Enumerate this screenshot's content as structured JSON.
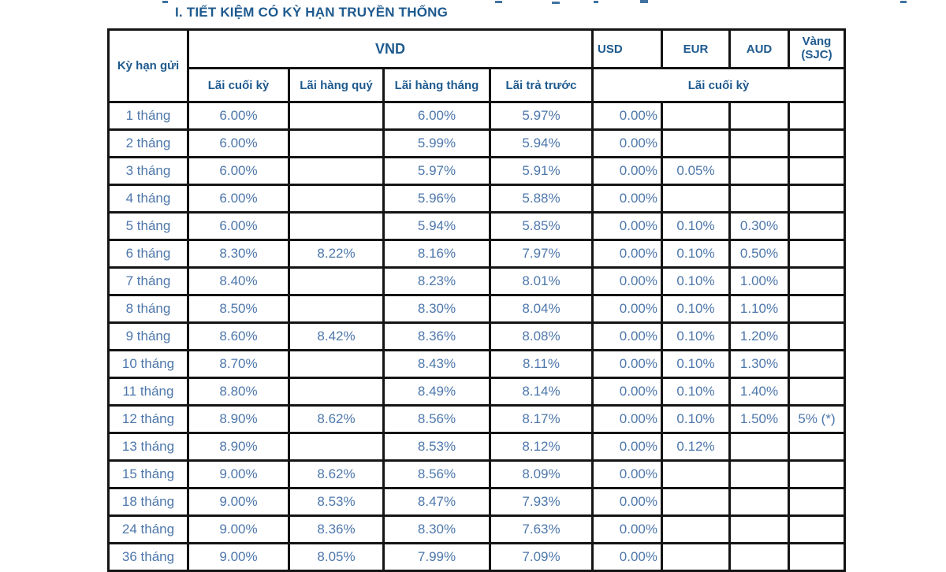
{
  "page": {
    "section_title": "I. TIẾT KIỆM CÓ KỲ HẠN TRUYỀN THỐNG"
  },
  "colors": {
    "header_text": "#1e5a8e",
    "data_text": "#4d77ab",
    "border": "#141414",
    "background": "#ffffff"
  },
  "table": {
    "header": {
      "term_col": "Kỳ hạn gửi",
      "vnd_group": "VND",
      "currencies": [
        "USD",
        "EUR",
        "AUD"
      ],
      "gold_line1": "Vàng",
      "gold_line2": "(SJC)",
      "vnd_subheaders": [
        "Lãi cuối kỳ",
        "Lãi hàng quý",
        "Lãi hàng tháng",
        "Lãi trả trước"
      ],
      "fx_subheader": "Lãi cuối kỳ"
    },
    "column_keys": [
      "term",
      "vnd_end",
      "vnd_quarterly",
      "vnd_monthly",
      "vnd_prepaid",
      "usd",
      "eur",
      "aud",
      "gold"
    ],
    "rows": [
      {
        "term": "1 tháng",
        "vnd_end": "6.00%",
        "vnd_quarterly": "",
        "vnd_monthly": "6.00%",
        "vnd_prepaid": "5.97%",
        "usd": "0.00%",
        "eur": "",
        "aud": "",
        "gold": ""
      },
      {
        "term": "2 tháng",
        "vnd_end": "6.00%",
        "vnd_quarterly": "",
        "vnd_monthly": "5.99%",
        "vnd_prepaid": "5.94%",
        "usd": "0.00%",
        "eur": "",
        "aud": "",
        "gold": ""
      },
      {
        "term": "3 tháng",
        "vnd_end": "6.00%",
        "vnd_quarterly": "",
        "vnd_monthly": "5.97%",
        "vnd_prepaid": "5.91%",
        "usd": "0.00%",
        "eur": "0.05%",
        "aud": "",
        "gold": ""
      },
      {
        "term": "4 tháng",
        "vnd_end": "6.00%",
        "vnd_quarterly": "",
        "vnd_monthly": "5.96%",
        "vnd_prepaid": "5.88%",
        "usd": "0.00%",
        "eur": "",
        "aud": "",
        "gold": ""
      },
      {
        "term": "5 tháng",
        "vnd_end": "6.00%",
        "vnd_quarterly": "",
        "vnd_monthly": "5.94%",
        "vnd_prepaid": "5.85%",
        "usd": "0.00%",
        "eur": "0.10%",
        "aud": "0.30%",
        "gold": ""
      },
      {
        "term": "6 tháng",
        "vnd_end": "8.30%",
        "vnd_quarterly": "8.22%",
        "vnd_monthly": "8.16%",
        "vnd_prepaid": "7.97%",
        "usd": "0.00%",
        "eur": "0.10%",
        "aud": "0.50%",
        "gold": ""
      },
      {
        "term": "7 tháng",
        "vnd_end": "8.40%",
        "vnd_quarterly": "",
        "vnd_monthly": "8.23%",
        "vnd_prepaid": "8.01%",
        "usd": "0.00%",
        "eur": "0.10%",
        "aud": "1.00%",
        "gold": ""
      },
      {
        "term": "8 tháng",
        "vnd_end": "8.50%",
        "vnd_quarterly": "",
        "vnd_monthly": "8.30%",
        "vnd_prepaid": "8.04%",
        "usd": "0.00%",
        "eur": "0.10%",
        "aud": "1.10%",
        "gold": ""
      },
      {
        "term": "9 tháng",
        "vnd_end": "8.60%",
        "vnd_quarterly": "8.42%",
        "vnd_monthly": "8.36%",
        "vnd_prepaid": "8.08%",
        "usd": "0.00%",
        "eur": "0.10%",
        "aud": "1.20%",
        "gold": ""
      },
      {
        "term": "10 tháng",
        "vnd_end": "8.70%",
        "vnd_quarterly": "",
        "vnd_monthly": "8.43%",
        "vnd_prepaid": "8.11%",
        "usd": "0.00%",
        "eur": "0.10%",
        "aud": "1.30%",
        "gold": ""
      },
      {
        "term": "11 tháng",
        "vnd_end": "8.80%",
        "vnd_quarterly": "",
        "vnd_monthly": "8.49%",
        "vnd_prepaid": "8.14%",
        "usd": "0.00%",
        "eur": "0.10%",
        "aud": "1.40%",
        "gold": ""
      },
      {
        "term": "12 tháng",
        "vnd_end": "8.90%",
        "vnd_quarterly": "8.62%",
        "vnd_monthly": "8.56%",
        "vnd_prepaid": "8.17%",
        "usd": "0.00%",
        "eur": "0.10%",
        "aud": "1.50%",
        "gold": "5% (*)"
      },
      {
        "term": "13 tháng",
        "vnd_end": "8.90%",
        "vnd_quarterly": "",
        "vnd_monthly": "8.53%",
        "vnd_prepaid": "8.12%",
        "usd": "0.00%",
        "eur": "0.12%",
        "aud": "",
        "gold": ""
      },
      {
        "term": "15 tháng",
        "vnd_end": "9.00%",
        "vnd_quarterly": "8.62%",
        "vnd_monthly": "8.56%",
        "vnd_prepaid": "8.09%",
        "usd": "0.00%",
        "eur": "",
        "aud": "",
        "gold": ""
      },
      {
        "term": "18 tháng",
        "vnd_end": "9.00%",
        "vnd_quarterly": "8.53%",
        "vnd_monthly": "8.47%",
        "vnd_prepaid": "7.93%",
        "usd": "0.00%",
        "eur": "",
        "aud": "",
        "gold": ""
      },
      {
        "term": "24 tháng",
        "vnd_end": "9.00%",
        "vnd_quarterly": "8.36%",
        "vnd_monthly": "8.30%",
        "vnd_prepaid": "7.63%",
        "usd": "0.00%",
        "eur": "",
        "aud": "",
        "gold": ""
      },
      {
        "term": "36 tháng",
        "vnd_end": "9.00%",
        "vnd_quarterly": "8.05%",
        "vnd_monthly": "7.99%",
        "vnd_prepaid": "7.09%",
        "usd": "0.00%",
        "eur": "",
        "aud": "",
        "gold": ""
      }
    ]
  }
}
